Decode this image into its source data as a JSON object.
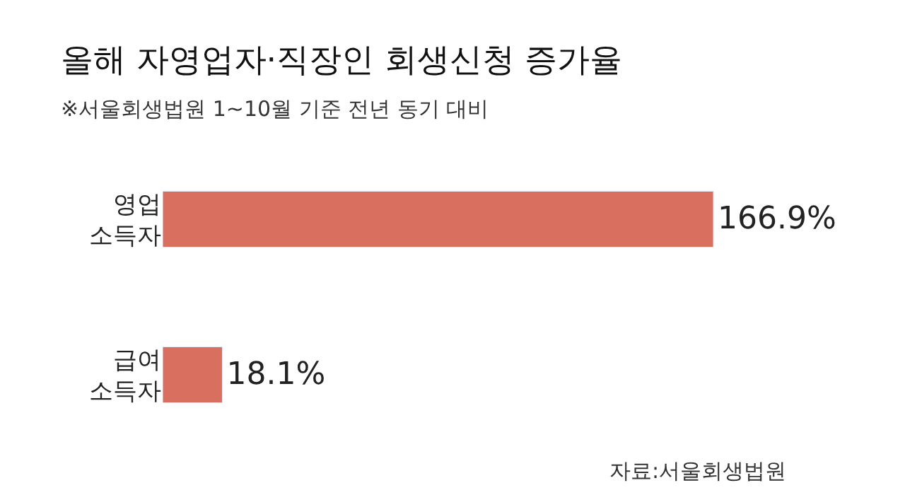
{
  "chart_data": {
    "type": "bar",
    "orientation": "horizontal",
    "title": "올해 자영업자·직장인 회생신청 증가율",
    "subtitle": "※서울회생법원 1~10월 기준 전년 동기 대비",
    "categories": [
      "영업\n소득자",
      "급여\n소득자"
    ],
    "values": [
      166.9,
      18.1
    ],
    "value_labels": [
      "166.9%",
      "18.1%"
    ],
    "color": "#d9705f",
    "tick_labels": "y",
    "annotations": [
      "자료:서울회생법원"
    ]
  }
}
